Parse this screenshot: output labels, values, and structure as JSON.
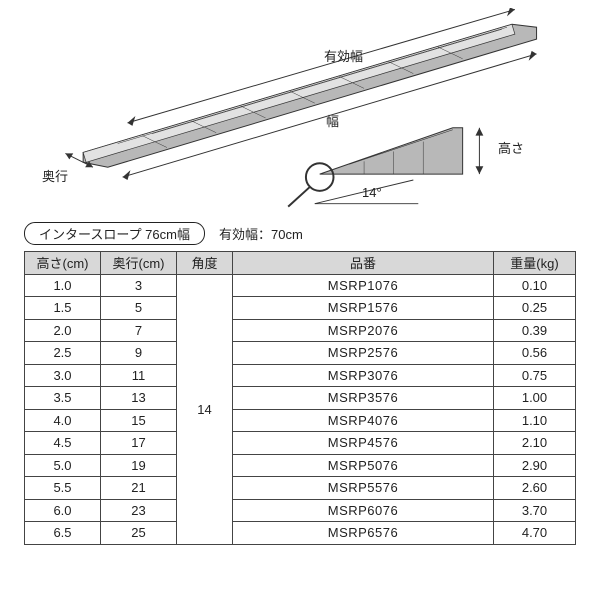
{
  "diagram": {
    "labels": {
      "effective_width": "有効幅",
      "width": "幅",
      "depth": "奥行",
      "height": "高さ",
      "angle": "14°"
    },
    "colors": {
      "stroke": "#333333",
      "fill": "#b8b8b8",
      "fill_light": "#e2e2e2",
      "arrow": "#333333"
    }
  },
  "title": {
    "pill": "インタースロープ 76cm幅",
    "sub": "有効幅：70cm"
  },
  "table": {
    "headers": {
      "height": "高さ(cm)",
      "depth": "奥行(cm)",
      "angle": "角度",
      "code": "品番",
      "weight": "重量(kg)"
    },
    "angle_merged": "14",
    "rows": [
      {
        "h": "1.0",
        "d": "3",
        "c": "MSRP1076",
        "w": "0.10"
      },
      {
        "h": "1.5",
        "d": "5",
        "c": "MSRP1576",
        "w": "0.25"
      },
      {
        "h": "2.0",
        "d": "7",
        "c": "MSRP2076",
        "w": "0.39"
      },
      {
        "h": "2.5",
        "d": "9",
        "c": "MSRP2576",
        "w": "0.56"
      },
      {
        "h": "3.0",
        "d": "11",
        "c": "MSRP3076",
        "w": "0.75"
      },
      {
        "h": "3.5",
        "d": "13",
        "c": "MSRP3576",
        "w": "1.00"
      },
      {
        "h": "4.0",
        "d": "15",
        "c": "MSRP4076",
        "w": "1.10"
      },
      {
        "h": "4.5",
        "d": "17",
        "c": "MSRP4576",
        "w": "2.10"
      },
      {
        "h": "5.0",
        "d": "19",
        "c": "MSRP5076",
        "w": "2.90"
      },
      {
        "h": "5.5",
        "d": "21",
        "c": "MSRP5576",
        "w": "2.60"
      },
      {
        "h": "6.0",
        "d": "23",
        "c": "MSRP6076",
        "w": "3.70"
      },
      {
        "h": "6.5",
        "d": "25",
        "c": "MSRP6576",
        "w": "4.70"
      }
    ]
  }
}
